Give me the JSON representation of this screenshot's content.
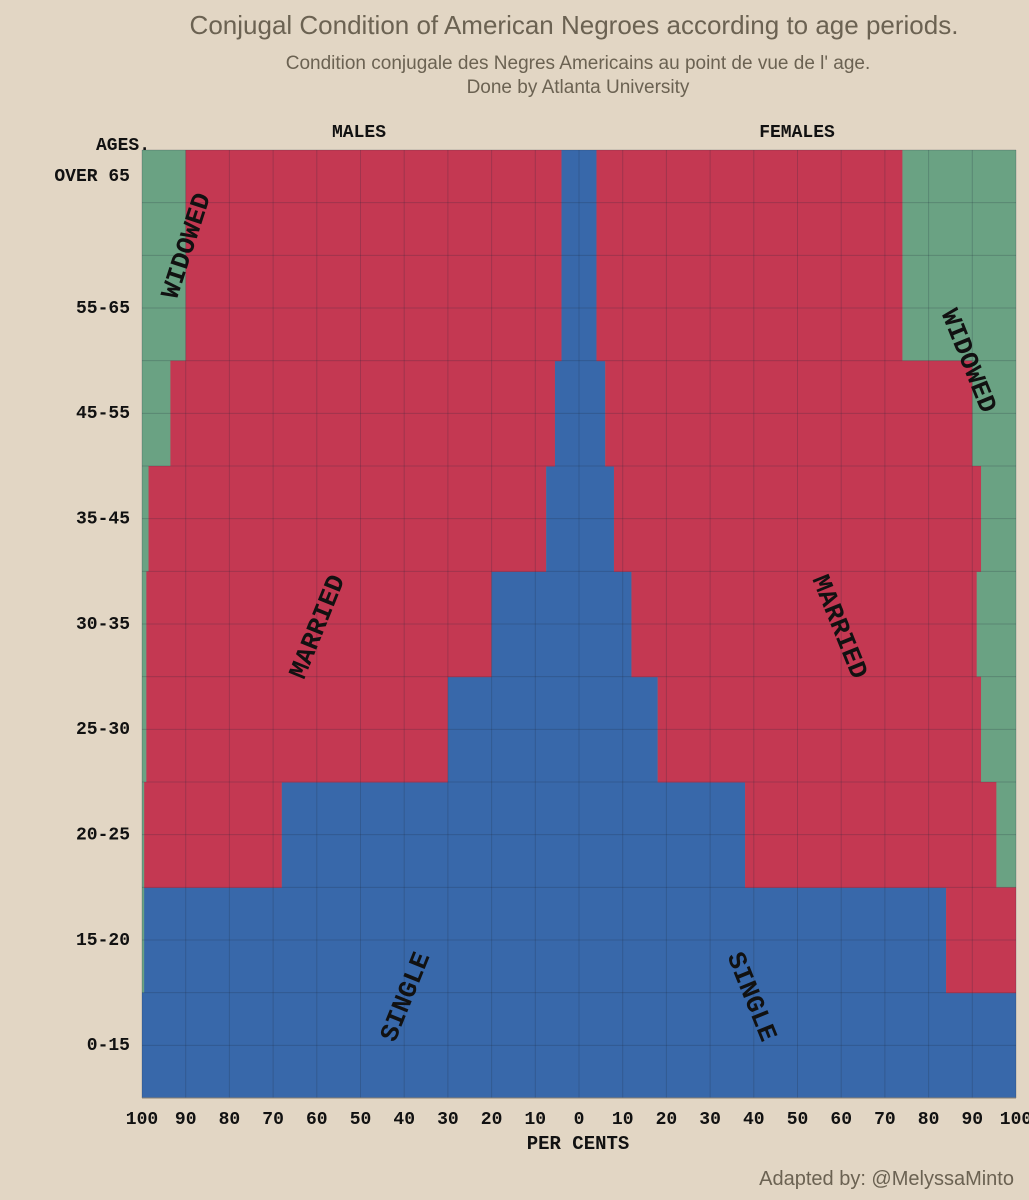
{
  "chart_data": {
    "type": "area",
    "title": "Conjugal Condition of American Negroes according to age periods.",
    "subtitle_line1": "Condition conjugale des Negres Americains au point de vue de l' age.",
    "subtitle_line2": "Done by Atlanta University",
    "caption": "Adapted by: @MelyssaMinto",
    "axis_title_ages": "AGES.",
    "xlabel": "PER CENTS",
    "males_label": "MALES",
    "females_label": "FEMALES",
    "age_groups": [
      "0-15",
      "15-20",
      "20-25",
      "25-30",
      "30-35",
      "35-45",
      "45-55",
      "55-65",
      "OVER 65"
    ],
    "x_tick_labels": [
      "100",
      "90",
      "80",
      "70",
      "60",
      "50",
      "40",
      "30",
      "20",
      "10",
      "0",
      "10",
      "20",
      "30",
      "40",
      "50",
      "60",
      "70",
      "80",
      "90",
      "100"
    ],
    "xlim": [
      0,
      100
    ],
    "males": {
      "single": [
        100,
        99.5,
        68,
        30,
        20,
        7.5,
        5.5,
        4,
        4
      ],
      "married": [
        0,
        0,
        31.5,
        69,
        79,
        91,
        88,
        86,
        86
      ],
      "widowed": [
        0,
        0.5,
        0.5,
        1,
        1,
        1.5,
        6.5,
        10,
        10
      ]
    },
    "females": {
      "single": [
        100,
        84,
        38,
        18,
        12,
        8,
        6,
        4,
        4
      ],
      "married": [
        0,
        16,
        57.5,
        74,
        79,
        84,
        84,
        70,
        70
      ],
      "widowed": [
        0,
        0,
        4.5,
        8,
        9,
        8,
        10,
        26,
        26
      ]
    },
    "region_labels": {
      "widowed": "WIDOWED",
      "married": "MARRIED",
      "single": "SINGLE"
    },
    "colors": {
      "single": "#3868aa",
      "married": "#c43852",
      "widowed": "#6aa283",
      "background": "#e2d6c4",
      "text": "#6b6252",
      "grid": "#1e2a3a",
      "border": "#8a8070"
    }
  }
}
